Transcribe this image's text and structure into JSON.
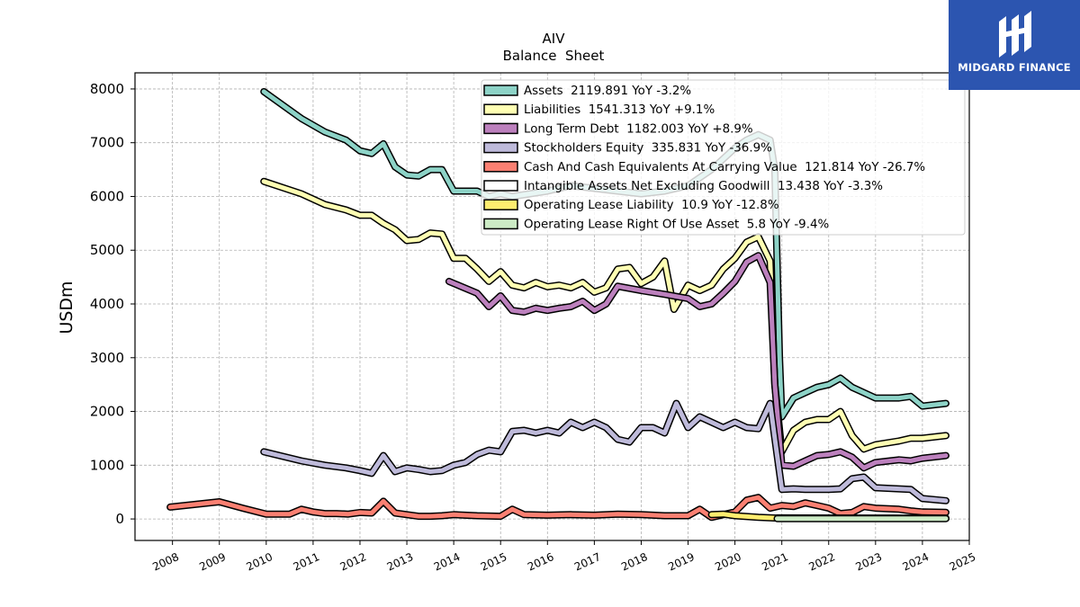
{
  "chart_data": {
    "type": "line",
    "title": "AIV",
    "subtitle": "Balance  Sheet",
    "ylabel": "USDm",
    "xlabel": "",
    "xlim": [
      2007.2,
      2025.0
    ],
    "ylim": [
      -400,
      8300
    ],
    "x_ticks": [
      2008,
      2009,
      2010,
      2011,
      2012,
      2013,
      2014,
      2015,
      2016,
      2017,
      2018,
      2019,
      2020,
      2021,
      2022,
      2023,
      2024,
      2025
    ],
    "y_ticks": [
      0,
      1000,
      2000,
      3000,
      4000,
      5000,
      6000,
      7000,
      8000
    ],
    "grid": true,
    "legend_position": "top-right",
    "series": [
      {
        "name": "Assets  2119.891 YoY -3.2%",
        "color": "#8dd3c7",
        "points": [
          [
            2009.95,
            7950
          ],
          [
            2010.75,
            7450
          ],
          [
            2011.25,
            7200
          ],
          [
            2011.7,
            7050
          ],
          [
            2012.0,
            6850
          ],
          [
            2012.25,
            6800
          ],
          [
            2012.5,
            6980
          ],
          [
            2012.75,
            6550
          ],
          [
            2013.0,
            6400
          ],
          [
            2013.25,
            6380
          ],
          [
            2013.5,
            6500
          ],
          [
            2013.75,
            6500
          ],
          [
            2014.0,
            6100
          ],
          [
            2014.5,
            6100
          ],
          [
            2014.75,
            6000
          ],
          [
            2015.0,
            6050
          ],
          [
            2015.25,
            6000
          ],
          [
            2016.0,
            6100
          ],
          [
            2016.5,
            6200
          ],
          [
            2017.0,
            6150
          ],
          [
            2017.5,
            6100
          ],
          [
            2018.0,
            6050
          ],
          [
            2018.5,
            6100
          ],
          [
            2019.0,
            6200
          ],
          [
            2019.5,
            6500
          ],
          [
            2020.0,
            6900
          ],
          [
            2020.25,
            7050
          ],
          [
            2020.5,
            7150
          ],
          [
            2020.75,
            7050
          ],
          [
            2020.85,
            6500
          ],
          [
            2020.95,
            3000
          ],
          [
            2021.0,
            1900
          ],
          [
            2021.25,
            2250
          ],
          [
            2021.5,
            2350
          ],
          [
            2021.75,
            2450
          ],
          [
            2022.0,
            2500
          ],
          [
            2022.25,
            2620
          ],
          [
            2022.5,
            2450
          ],
          [
            2022.75,
            2350
          ],
          [
            2023.0,
            2250
          ],
          [
            2023.5,
            2250
          ],
          [
            2023.75,
            2280
          ],
          [
            2024.0,
            2100
          ],
          [
            2024.5,
            2150
          ]
        ]
      },
      {
        "name": "Liabilities  1541.313 YoY +9.1%",
        "color": "#ffffb3",
        "points": [
          [
            2009.95,
            6280
          ],
          [
            2010.75,
            6050
          ],
          [
            2011.25,
            5850
          ],
          [
            2011.7,
            5750
          ],
          [
            2012.0,
            5650
          ],
          [
            2012.25,
            5650
          ],
          [
            2012.5,
            5500
          ],
          [
            2012.75,
            5380
          ],
          [
            2013.0,
            5180
          ],
          [
            2013.25,
            5200
          ],
          [
            2013.5,
            5320
          ],
          [
            2013.75,
            5300
          ],
          [
            2014.0,
            4850
          ],
          [
            2014.25,
            4850
          ],
          [
            2014.5,
            4650
          ],
          [
            2014.75,
            4420
          ],
          [
            2015.0,
            4600
          ],
          [
            2015.25,
            4350
          ],
          [
            2015.5,
            4300
          ],
          [
            2015.75,
            4400
          ],
          [
            2016.0,
            4320
          ],
          [
            2016.25,
            4350
          ],
          [
            2016.5,
            4300
          ],
          [
            2016.75,
            4400
          ],
          [
            2017.0,
            4220
          ],
          [
            2017.25,
            4300
          ],
          [
            2017.5,
            4650
          ],
          [
            2017.75,
            4680
          ],
          [
            2018.0,
            4380
          ],
          [
            2018.25,
            4500
          ],
          [
            2018.5,
            4800
          ],
          [
            2018.7,
            3900
          ],
          [
            2019.0,
            4350
          ],
          [
            2019.25,
            4250
          ],
          [
            2019.5,
            4350
          ],
          [
            2019.75,
            4650
          ],
          [
            2020.0,
            4850
          ],
          [
            2020.25,
            5150
          ],
          [
            2020.5,
            5250
          ],
          [
            2020.75,
            4800
          ],
          [
            2020.85,
            2500
          ],
          [
            2021.0,
            1250
          ],
          [
            2021.25,
            1650
          ],
          [
            2021.5,
            1800
          ],
          [
            2021.75,
            1850
          ],
          [
            2022.0,
            1850
          ],
          [
            2022.25,
            2000
          ],
          [
            2022.5,
            1550
          ],
          [
            2022.75,
            1300
          ],
          [
            2023.0,
            1380
          ],
          [
            2023.5,
            1450
          ],
          [
            2023.75,
            1500
          ],
          [
            2024.0,
            1500
          ],
          [
            2024.5,
            1550
          ]
        ]
      },
      {
        "name": "Long Term Debt  1182.003 YoY +8.9%",
        "color": "#bc80bd",
        "points": [
          [
            2013.9,
            4420
          ],
          [
            2014.5,
            4200
          ],
          [
            2014.75,
            3950
          ],
          [
            2015.0,
            4150
          ],
          [
            2015.25,
            3880
          ],
          [
            2015.5,
            3850
          ],
          [
            2015.75,
            3920
          ],
          [
            2016.0,
            3880
          ],
          [
            2016.25,
            3920
          ],
          [
            2016.5,
            3950
          ],
          [
            2016.75,
            4050
          ],
          [
            2017.0,
            3880
          ],
          [
            2017.25,
            4000
          ],
          [
            2017.5,
            4330
          ],
          [
            2018.0,
            4250
          ],
          [
            2018.5,
            4180
          ],
          [
            2019.0,
            4100
          ],
          [
            2019.25,
            3950
          ],
          [
            2019.5,
            4000
          ],
          [
            2019.75,
            4200
          ],
          [
            2020.0,
            4420
          ],
          [
            2020.25,
            4780
          ],
          [
            2020.5,
            4900
          ],
          [
            2020.75,
            4400
          ],
          [
            2020.85,
            2500
          ],
          [
            2021.0,
            1000
          ],
          [
            2021.25,
            980
          ],
          [
            2021.5,
            1080
          ],
          [
            2021.75,
            1180
          ],
          [
            2022.0,
            1200
          ],
          [
            2022.25,
            1250
          ],
          [
            2022.5,
            1150
          ],
          [
            2022.75,
            950
          ],
          [
            2023.0,
            1050
          ],
          [
            2023.5,
            1100
          ],
          [
            2023.75,
            1080
          ],
          [
            2024.0,
            1130
          ],
          [
            2024.5,
            1180
          ]
        ]
      },
      {
        "name": "Stockholders Equity  335.831 YoY -36.9%",
        "color": "#bebada",
        "points": [
          [
            2009.95,
            1250
          ],
          [
            2010.75,
            1080
          ],
          [
            2011.25,
            1000
          ],
          [
            2011.7,
            950
          ],
          [
            2012.0,
            900
          ],
          [
            2012.25,
            850
          ],
          [
            2012.5,
            1180
          ],
          [
            2012.75,
            880
          ],
          [
            2013.0,
            950
          ],
          [
            2013.25,
            920
          ],
          [
            2013.5,
            880
          ],
          [
            2013.75,
            900
          ],
          [
            2014.0,
            1000
          ],
          [
            2014.25,
            1050
          ],
          [
            2014.5,
            1200
          ],
          [
            2014.75,
            1280
          ],
          [
            2015.0,
            1250
          ],
          [
            2015.25,
            1630
          ],
          [
            2015.5,
            1650
          ],
          [
            2015.75,
            1600
          ],
          [
            2016.0,
            1650
          ],
          [
            2016.25,
            1600
          ],
          [
            2016.5,
            1800
          ],
          [
            2016.75,
            1700
          ],
          [
            2017.0,
            1800
          ],
          [
            2017.25,
            1700
          ],
          [
            2017.5,
            1480
          ],
          [
            2017.75,
            1430
          ],
          [
            2018.0,
            1700
          ],
          [
            2018.25,
            1700
          ],
          [
            2018.5,
            1600
          ],
          [
            2018.75,
            2150
          ],
          [
            2019.0,
            1700
          ],
          [
            2019.25,
            1900
          ],
          [
            2019.5,
            1800
          ],
          [
            2019.75,
            1700
          ],
          [
            2020.0,
            1800
          ],
          [
            2020.25,
            1700
          ],
          [
            2020.5,
            1680
          ],
          [
            2020.75,
            2150
          ],
          [
            2020.85,
            1500
          ],
          [
            2021.0,
            550
          ],
          [
            2021.25,
            560
          ],
          [
            2021.5,
            550
          ],
          [
            2021.75,
            550
          ],
          [
            2022.0,
            550
          ],
          [
            2022.25,
            560
          ],
          [
            2022.5,
            750
          ],
          [
            2022.75,
            780
          ],
          [
            2023.0,
            580
          ],
          [
            2023.5,
            560
          ],
          [
            2023.75,
            550
          ],
          [
            2024.0,
            380
          ],
          [
            2024.5,
            340
          ]
        ]
      },
      {
        "name": "Cash And Cash Equivalents At Carrying Value  121.814 YoY -26.7%",
        "color": "#fb8072",
        "points": [
          [
            2007.95,
            220
          ],
          [
            2009.0,
            320
          ],
          [
            2009.5,
            200
          ],
          [
            2010.0,
            90
          ],
          [
            2010.5,
            90
          ],
          [
            2010.75,
            180
          ],
          [
            2011.0,
            130
          ],
          [
            2011.25,
            100
          ],
          [
            2011.5,
            100
          ],
          [
            2011.75,
            90
          ],
          [
            2012.0,
            120
          ],
          [
            2012.25,
            110
          ],
          [
            2012.5,
            330
          ],
          [
            2012.75,
            110
          ],
          [
            2013.0,
            80
          ],
          [
            2013.25,
            50
          ],
          [
            2013.5,
            50
          ],
          [
            2013.75,
            60
          ],
          [
            2014.0,
            80
          ],
          [
            2014.5,
            60
          ],
          [
            2015.0,
            50
          ],
          [
            2015.25,
            180
          ],
          [
            2015.5,
            80
          ],
          [
            2016.0,
            70
          ],
          [
            2016.5,
            80
          ],
          [
            2017.0,
            70
          ],
          [
            2017.5,
            90
          ],
          [
            2018.0,
            80
          ],
          [
            2018.5,
            60
          ],
          [
            2019.0,
            60
          ],
          [
            2019.25,
            180
          ],
          [
            2019.5,
            30
          ],
          [
            2019.75,
            80
          ],
          [
            2020.0,
            130
          ],
          [
            2020.25,
            350
          ],
          [
            2020.5,
            400
          ],
          [
            2020.75,
            200
          ],
          [
            2021.0,
            250
          ],
          [
            2021.25,
            230
          ],
          [
            2021.5,
            300
          ],
          [
            2021.75,
            250
          ],
          [
            2022.0,
            200
          ],
          [
            2022.25,
            100
          ],
          [
            2022.5,
            120
          ],
          [
            2022.75,
            230
          ],
          [
            2023.0,
            200
          ],
          [
            2023.5,
            180
          ],
          [
            2023.75,
            150
          ],
          [
            2024.0,
            130
          ],
          [
            2024.5,
            122
          ]
        ]
      },
      {
        "name": "Intangible Assets Net Excluding Goodwill  13.438 YoY -3.3%",
        "color": "#ffffff",
        "points": [
          [
            2020.9,
            20
          ],
          [
            2024.5,
            13.4
          ]
        ]
      },
      {
        "name": "Operating Lease Liability  10.9 YoY -12.8%",
        "color": "#ffed6f",
        "points": [
          [
            2019.5,
            80
          ],
          [
            2019.75,
            90
          ],
          [
            2020.0,
            60
          ],
          [
            2020.5,
            30
          ],
          [
            2021.0,
            12
          ],
          [
            2024.5,
            10.9
          ]
        ]
      },
      {
        "name": "Operating Lease Right Of Use Asset  5.8 YoY -9.4%",
        "color": "#ccebc5",
        "points": [
          [
            2020.9,
            6
          ],
          [
            2024.5,
            5.8
          ]
        ]
      }
    ]
  },
  "logo": {
    "text": "MIDGARD FINANCE",
    "bg": "#2c55b0"
  }
}
